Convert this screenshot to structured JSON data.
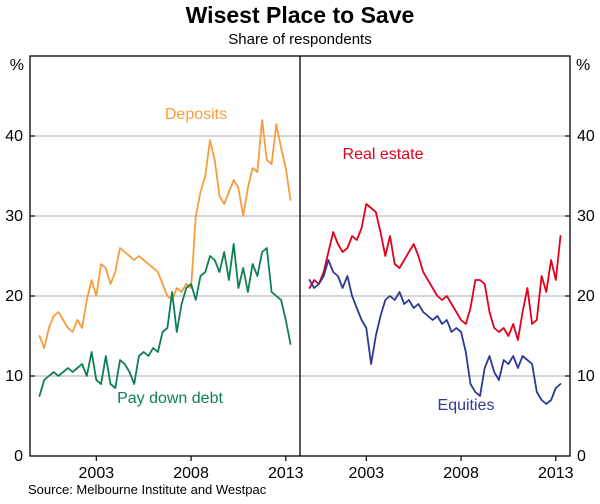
{
  "chart_data": {
    "type": "line",
    "title": "Wisest Place to Save",
    "subtitle": "Share of respondents",
    "unit": "%",
    "source": "Source: Melbourne Institute and Westpac",
    "ylim": [
      0,
      50
    ],
    "yticks": [
      0,
      10,
      20,
      30,
      40
    ],
    "gridlines": [
      10,
      20,
      30,
      40
    ],
    "grid_color": "#ababab",
    "axis_color": "#000000",
    "x_min": 1999.5,
    "x_max": 2013.75,
    "x_start": 2000.0,
    "x_step": 0.25,
    "xticks": [
      2003,
      2008,
      2013
    ],
    "panels": [
      {
        "series": [
          {
            "name": "Deposits",
            "color": "#F89C3E",
            "values": [
              15,
              13.5,
              16,
              17.5,
              18,
              17,
              16,
              15.5,
              17,
              16,
              19.5,
              22,
              20,
              24,
              23.5,
              21.5,
              23,
              26,
              25.5,
              25,
              24.5,
              25,
              24.5,
              24,
              23.5,
              23,
              21.5,
              20,
              19.5,
              21,
              20.5,
              21.5,
              21,
              30,
              33,
              35,
              39.5,
              37,
              32.5,
              31.5,
              33,
              34.5,
              33.5,
              30,
              33.5,
              36,
              35.5,
              42,
              37,
              36.5,
              41.5,
              38.5,
              36,
              32
            ]
          },
          {
            "name": "Pay down debt",
            "color": "#0E8050",
            "values": [
              7.5,
              9.5,
              10,
              10.5,
              10,
              10.5,
              11,
              10.5,
              11,
              11.5,
              10,
              13,
              9.5,
              9,
              12.5,
              9,
              8.5,
              12,
              11.5,
              10.5,
              9,
              12.5,
              13,
              12.5,
              13.5,
              13,
              15.5,
              16,
              20.5,
              15.5,
              19,
              21,
              21.5,
              19.5,
              22.5,
              23,
              25,
              24.5,
              23,
              25.5,
              22,
              26.5,
              21,
              23.5,
              20.5,
              24,
              22.5,
              25.5,
              26,
              20.5,
              20,
              19.5,
              17,
              14
            ]
          }
        ]
      },
      {
        "series": [
          {
            "name": "Real estate",
            "color": "#E2001A",
            "values": [
              21,
              22,
              21.5,
              23,
              25.5,
              28,
              26.5,
              25.5,
              26,
              27.5,
              27,
              28.5,
              31.5,
              31,
              30.5,
              28,
              25,
              27.5,
              24,
              23.5,
              24.5,
              25.5,
              26.5,
              25,
              23,
              22,
              21,
              20,
              19.5,
              20,
              19,
              18,
              17,
              16.5,
              18.5,
              22,
              22,
              21.5,
              18,
              16,
              15.5,
              16,
              15,
              16.5,
              14.5,
              18,
              21,
              16.5,
              17,
              22.5,
              20.5,
              24.5,
              22,
              27.5
            ]
          },
          {
            "name": "Equities",
            "color": "#2E3A92",
            "values": [
              22,
              21,
              21.5,
              22.5,
              24.5,
              23,
              22.5,
              21,
              22.5,
              20,
              18.5,
              17,
              16,
              11.5,
              15,
              17.5,
              19.5,
              20,
              19.5,
              20.5,
              19,
              19.5,
              18.5,
              19,
              18,
              17.5,
              17,
              17.5,
              16.5,
              17,
              15.5,
              16,
              15.5,
              13,
              9,
              8,
              7.5,
              11,
              12.5,
              10.5,
              9.5,
              12,
              11.5,
              12.5,
              11,
              12.5,
              12,
              11.5,
              8,
              7,
              6.5,
              7,
              8.5,
              9
            ]
          }
        ]
      }
    ]
  }
}
